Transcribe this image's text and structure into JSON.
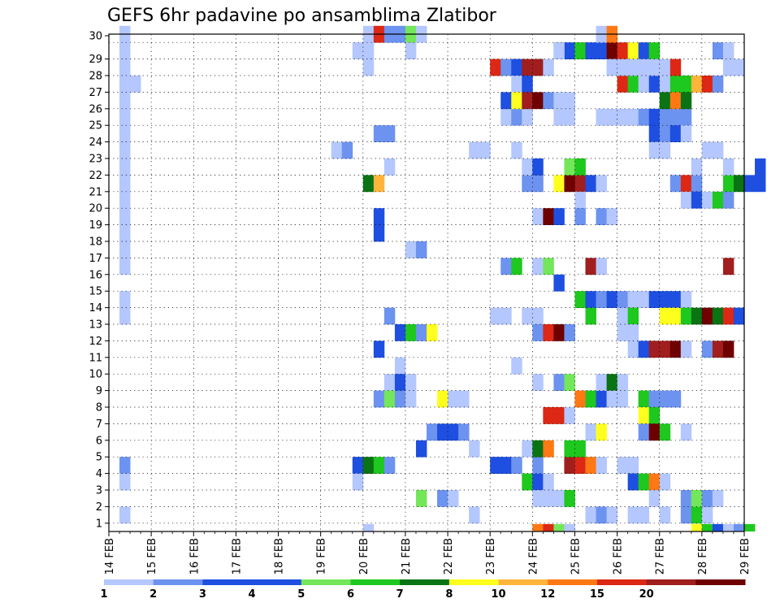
{
  "chart_data": {
    "type": "heatmap",
    "title": "GEFS 6hr padavine po ansamblima Zlatibor",
    "y_ticks": [
      "1",
      "2",
      "3",
      "4",
      "5",
      "6",
      "7",
      "8",
      "9",
      "10",
      "11",
      "12",
      "13",
      "14",
      "15",
      "16",
      "17",
      "18",
      "19",
      "20",
      "21",
      "22",
      "23",
      "24",
      "25",
      "26",
      "27",
      "28",
      "29",
      "30"
    ],
    "ylim": [
      0,
      30
    ],
    "x_ticks": [
      "14 FEB",
      "15 FEB",
      "16 FEB",
      "17 FEB",
      "18 FEB",
      "19 FEB",
      "20 FEB",
      "21 FEB",
      "22 FEB",
      "23 FEB",
      "24 FEB",
      "25 FEB",
      "26 FEB",
      "27 FEB",
      "28 FEB",
      "29 FEB"
    ],
    "x_steps_per_day": 4,
    "grid": true,
    "legend": {
      "labels": [
        "1",
        "2",
        "3",
        "4",
        "5",
        "6",
        "7",
        "8",
        "10",
        "12",
        "15",
        "20"
      ],
      "colors": [
        "#b4c7ff",
        "#6d93f0",
        "#1e4fe0",
        "#1e4fe0",
        "#73e65a",
        "#1ec81e",
        "#0a7314",
        "#ffff1e",
        "#ffb43c",
        "#ff7814",
        "#dc2814",
        "#a01e1e",
        "#6e0000"
      ]
    },
    "cells": [
      [
        1,
        30,
        0
      ],
      [
        1,
        29,
        0
      ],
      [
        1,
        28,
        0
      ],
      [
        1,
        27,
        0
      ],
      [
        2,
        27,
        0
      ],
      [
        1,
        26,
        0
      ],
      [
        1,
        25,
        0
      ],
      [
        1,
        24,
        0
      ],
      [
        1,
        23,
        0
      ],
      [
        1,
        22,
        0
      ],
      [
        1,
        21,
        0
      ],
      [
        1,
        20,
        0
      ],
      [
        1,
        19,
        0
      ],
      [
        1,
        18,
        0
      ],
      [
        1,
        17,
        0
      ],
      [
        1,
        16,
        0
      ],
      [
        1,
        14,
        0
      ],
      [
        1,
        13,
        0
      ],
      [
        1,
        4,
        1
      ],
      [
        1,
        3,
        0
      ],
      [
        1,
        1,
        0
      ],
      [
        24,
        0,
        0
      ],
      [
        24,
        30,
        0
      ],
      [
        25,
        30,
        10
      ],
      [
        26,
        30,
        1
      ],
      [
        27,
        30,
        1
      ],
      [
        28,
        30,
        4
      ],
      [
        29,
        30,
        0
      ],
      [
        23,
        29,
        0
      ],
      [
        24,
        29,
        0
      ],
      [
        28,
        29,
        0
      ],
      [
        24,
        28,
        0
      ],
      [
        25,
        24,
        1
      ],
      [
        26,
        24,
        1
      ],
      [
        21,
        23,
        0
      ],
      [
        22,
        23,
        1
      ],
      [
        26,
        22,
        0
      ],
      [
        24,
        21,
        6
      ],
      [
        25,
        21,
        8
      ],
      [
        25,
        19,
        2
      ],
      [
        25,
        18,
        2
      ],
      [
        28,
        17,
        0
      ],
      [
        29,
        17,
        1
      ],
      [
        26,
        13,
        1
      ],
      [
        27,
        12,
        2
      ],
      [
        28,
        12,
        5
      ],
      [
        29,
        12,
        1
      ],
      [
        30,
        12,
        7
      ],
      [
        25,
        11,
        2
      ],
      [
        27,
        10,
        0
      ],
      [
        26,
        9,
        0
      ],
      [
        27,
        9,
        2
      ],
      [
        28,
        9,
        0
      ],
      [
        25,
        8,
        1
      ],
      [
        26,
        8,
        4
      ],
      [
        27,
        8,
        1
      ],
      [
        28,
        8,
        0
      ],
      [
        29,
        5,
        2
      ],
      [
        23,
        4,
        2
      ],
      [
        24,
        4,
        6
      ],
      [
        25,
        4,
        5
      ],
      [
        26,
        4,
        1
      ],
      [
        23,
        3,
        0
      ],
      [
        29,
        2,
        4
      ],
      [
        30,
        6,
        1
      ],
      [
        31,
        6,
        2
      ],
      [
        32,
        6,
        2
      ],
      [
        33,
        6,
        1
      ],
      [
        31,
        8,
        7
      ],
      [
        32,
        8,
        0
      ],
      [
        33,
        8,
        0
      ],
      [
        31,
        2,
        1
      ],
      [
        32,
        2,
        0
      ],
      [
        34,
        23,
        0
      ],
      [
        35,
        23,
        0
      ],
      [
        34,
        5,
        0
      ],
      [
        34,
        1,
        0
      ],
      [
        36,
        28,
        10
      ],
      [
        37,
        28,
        1
      ],
      [
        38,
        28,
        2
      ],
      [
        39,
        28,
        11
      ],
      [
        40,
        28,
        11
      ],
      [
        41,
        28,
        0
      ],
      [
        37,
        25,
        0
      ],
      [
        38,
        25,
        1
      ],
      [
        39,
        25,
        0
      ],
      [
        38,
        27,
        0
      ],
      [
        39,
        27,
        2
      ],
      [
        37,
        26,
        2
      ],
      [
        38,
        26,
        7
      ],
      [
        39,
        26,
        11
      ],
      [
        40,
        26,
        12
      ],
      [
        41,
        26,
        1
      ],
      [
        38,
        23,
        0
      ],
      [
        36,
        13,
        0
      ],
      [
        37,
        13,
        0
      ],
      [
        39,
        13,
        0
      ],
      [
        40,
        13,
        0
      ],
      [
        37,
        16,
        1
      ],
      [
        38,
        16,
        5
      ],
      [
        38,
        10,
        0
      ],
      [
        36,
        4,
        2
      ],
      [
        37,
        4,
        2
      ],
      [
        38,
        4,
        1
      ],
      [
        39,
        3,
        5
      ],
      [
        40,
        3,
        2
      ],
      [
        41,
        3,
        0
      ],
      [
        40,
        4,
        1
      ],
      [
        40,
        2,
        0
      ],
      [
        39,
        5,
        0
      ],
      [
        40,
        5,
        6
      ],
      [
        41,
        5,
        9
      ],
      [
        39,
        21,
        1
      ],
      [
        40,
        21,
        1
      ],
      [
        39,
        22,
        0
      ],
      [
        40,
        22,
        2
      ],
      [
        40,
        19,
        0
      ],
      [
        41,
        19,
        12
      ],
      [
        42,
        19,
        2
      ],
      [
        40,
        16,
        0
      ],
      [
        41,
        16,
        4
      ],
      [
        42,
        15,
        2
      ],
      [
        40,
        12,
        1
      ],
      [
        41,
        12,
        10
      ],
      [
        42,
        12,
        12
      ],
      [
        43,
        12,
        1
      ],
      [
        40,
        9,
        0
      ],
      [
        42,
        9,
        1
      ],
      [
        43,
        9,
        4
      ],
      [
        40,
        0,
        9
      ],
      [
        41,
        0,
        10
      ],
      [
        42,
        0,
        4
      ],
      [
        43,
        0,
        0
      ],
      [
        41,
        2,
        0
      ],
      [
        42,
        2,
        0
      ],
      [
        43,
        2,
        5
      ],
      [
        41,
        7,
        10
      ],
      [
        42,
        7,
        10
      ],
      [
        43,
        7,
        0
      ],
      [
        42,
        25,
        0
      ],
      [
        43,
        25,
        0
      ],
      [
        42,
        26,
        0
      ],
      [
        43,
        26,
        0
      ],
      [
        42,
        21,
        7
      ],
      [
        43,
        21,
        12
      ],
      [
        44,
        21,
        11
      ],
      [
        45,
        21,
        2
      ],
      [
        46,
        21,
        0
      ],
      [
        43,
        22,
        4
      ],
      [
        44,
        22,
        5
      ],
      [
        44,
        20,
        0
      ],
      [
        43,
        4,
        11
      ],
      [
        44,
        4,
        10
      ],
      [
        45,
        4,
        9
      ],
      [
        46,
        4,
        0
      ],
      [
        43,
        5,
        5
      ],
      [
        44,
        5,
        5
      ],
      [
        42,
        29,
        5
      ],
      [
        43,
        29,
        2
      ],
      [
        44,
        29,
        0
      ],
      [
        42,
        29,
        0
      ],
      [
        44,
        14,
        5
      ],
      [
        45,
        14,
        2
      ],
      [
        46,
        14,
        1
      ],
      [
        45,
        13,
        5
      ],
      [
        44,
        8,
        9
      ],
      [
        45,
        8,
        5
      ],
      [
        46,
        8,
        2
      ],
      [
        45,
        6,
        0
      ],
      [
        46,
        6,
        7
      ],
      [
        46,
        9,
        0
      ],
      [
        47,
        9,
        6
      ],
      [
        48,
        9,
        0
      ],
      [
        44,
        19,
        1
      ],
      [
        46,
        19,
        1
      ],
      [
        47,
        19,
        0
      ],
      [
        45,
        16,
        11
      ],
      [
        46,
        16,
        0
      ],
      [
        45,
        1,
        0
      ],
      [
        46,
        1,
        1
      ],
      [
        47,
        1,
        0
      ],
      [
        44,
        29,
        5
      ],
      [
        45,
        29,
        3
      ],
      [
        46,
        29,
        2
      ],
      [
        47,
        29,
        12
      ],
      [
        48,
        29,
        10
      ],
      [
        49,
        29,
        7
      ],
      [
        50,
        29,
        3
      ],
      [
        51,
        29,
        5
      ],
      [
        46,
        25,
        0
      ],
      [
        47,
        25,
        0
      ],
      [
        48,
        25,
        0
      ],
      [
        49,
        25,
        0
      ],
      [
        50,
        25,
        1
      ],
      [
        51,
        25,
        2
      ],
      [
        52,
        25,
        1
      ],
      [
        53,
        25,
        1
      ],
      [
        54,
        25,
        1
      ],
      [
        48,
        27,
        10
      ],
      [
        49,
        27,
        5
      ],
      [
        50,
        27,
        0
      ],
      [
        51,
        27,
        2
      ],
      [
        52,
        27,
        0
      ],
      [
        53,
        27,
        5
      ],
      [
        54,
        27,
        5
      ],
      [
        55,
        27,
        8
      ],
      [
        56,
        27,
        10
      ],
      [
        57,
        27,
        1
      ],
      [
        47,
        28,
        0
      ],
      [
        48,
        28,
        0
      ],
      [
        49,
        28,
        0
      ],
      [
        50,
        28,
        0
      ],
      [
        51,
        28,
        0
      ],
      [
        52,
        28,
        0
      ],
      [
        53,
        28,
        10
      ],
      [
        46,
        30,
        0
      ],
      [
        47,
        30,
        9
      ],
      [
        47,
        14,
        2
      ],
      [
        48,
        14,
        1
      ],
      [
        49,
        14,
        0
      ],
      [
        50,
        14,
        0
      ],
      [
        51,
        14,
        2
      ],
      [
        52,
        14,
        2
      ],
      [
        53,
        14,
        2
      ],
      [
        54,
        14,
        0
      ],
      [
        48,
        13,
        0
      ],
      [
        49,
        13,
        5
      ],
      [
        52,
        13,
        7
      ],
      [
        53,
        13,
        7
      ],
      [
        54,
        13,
        5
      ],
      [
        55,
        13,
        6
      ],
      [
        56,
        13,
        12
      ],
      [
        57,
        13,
        6
      ],
      [
        58,
        13,
        10
      ],
      [
        59,
        13,
        2
      ],
      [
        48,
        12,
        0
      ],
      [
        49,
        12,
        0
      ],
      [
        49,
        11,
        0
      ],
      [
        50,
        11,
        2
      ],
      [
        51,
        11,
        11
      ],
      [
        52,
        11,
        11
      ],
      [
        53,
        11,
        12
      ],
      [
        54,
        11,
        0
      ],
      [
        56,
        11,
        1
      ],
      [
        57,
        11,
        11
      ],
      [
        58,
        11,
        12
      ],
      [
        47,
        8,
        0
      ],
      [
        48,
        8,
        0
      ],
      [
        50,
        8,
        5
      ],
      [
        51,
        8,
        1
      ],
      [
        52,
        8,
        1
      ],
      [
        53,
        8,
        1
      ],
      [
        50,
        7,
        7
      ],
      [
        51,
        7,
        5
      ],
      [
        50,
        6,
        1
      ],
      [
        51,
        6,
        12
      ],
      [
        52,
        6,
        5
      ],
      [
        54,
        6,
        0
      ],
      [
        48,
        4,
        0
      ],
      [
        49,
        4,
        0
      ],
      [
        49,
        3,
        2
      ],
      [
        50,
        3,
        5
      ],
      [
        51,
        3,
        9
      ],
      [
        52,
        3,
        0
      ],
      [
        51,
        2,
        0
      ],
      [
        49,
        1,
        0
      ],
      [
        50,
        1,
        0
      ],
      [
        52,
        1,
        0
      ],
      [
        51,
        24,
        2
      ],
      [
        52,
        24,
        1
      ],
      [
        53,
        24,
        2
      ],
      [
        54,
        24,
        0
      ],
      [
        52,
        26,
        6
      ],
      [
        53,
        26,
        9
      ],
      [
        54,
        26,
        6
      ],
      [
        51,
        23,
        0
      ],
      [
        52,
        23,
        0
      ],
      [
        53,
        21,
        1
      ],
      [
        54,
        21,
        10
      ],
      [
        55,
        21,
        1
      ],
      [
        55,
        22,
        0
      ],
      [
        54,
        20,
        0
      ],
      [
        55,
        20,
        2
      ],
      [
        56,
        20,
        0
      ],
      [
        54,
        2,
        1
      ],
      [
        55,
        2,
        0
      ],
      [
        54,
        1,
        1
      ],
      [
        55,
        1,
        5
      ],
      [
        56,
        1,
        0
      ],
      [
        55,
        0,
        7
      ],
      [
        56,
        0,
        5
      ],
      [
        57,
        0,
        2
      ],
      [
        55,
        2,
        4
      ],
      [
        56,
        2,
        1
      ],
      [
        57,
        2,
        0
      ],
      [
        56,
        23,
        0
      ],
      [
        57,
        23,
        0
      ],
      [
        58,
        21,
        5
      ],
      [
        59,
        21,
        6
      ],
      [
        60,
        21,
        2
      ],
      [
        61,
        21,
        2
      ],
      [
        57,
        20,
        5
      ],
      [
        58,
        20,
        1
      ],
      [
        58,
        28,
        0
      ],
      [
        59,
        28,
        0
      ],
      [
        57,
        29,
        1
      ],
      [
        58,
        29,
        0
      ],
      [
        58,
        16,
        11
      ],
      [
        58,
        22,
        0
      ],
      [
        61,
        22,
        3
      ],
      [
        58,
        0,
        0
      ],
      [
        59,
        0,
        1
      ],
      [
        60,
        0,
        5
      ]
    ]
  }
}
